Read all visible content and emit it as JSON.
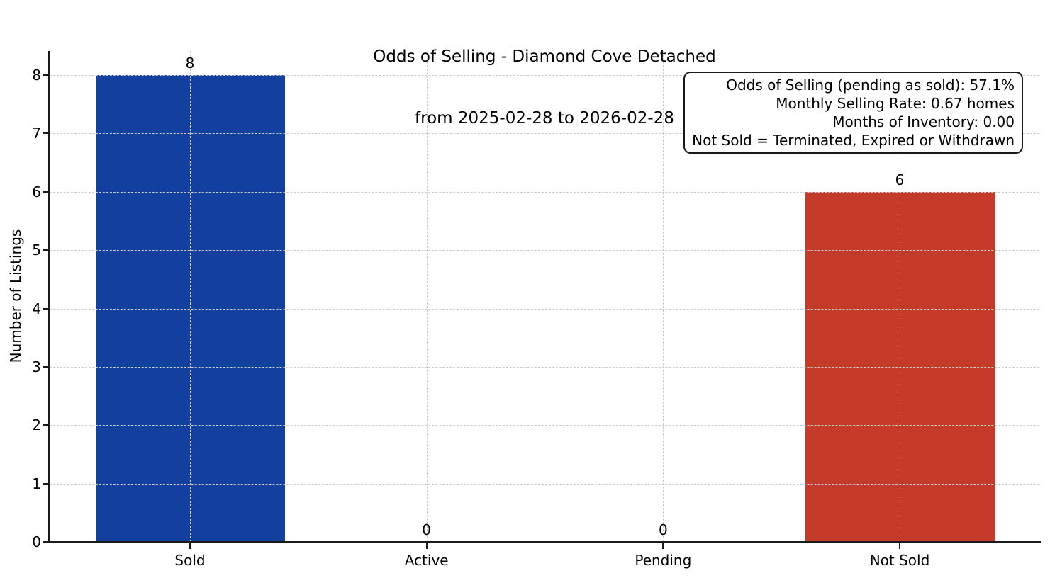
{
  "chart_data": {
    "type": "bar",
    "title": "Odds of Selling - Diamond Cove Detached",
    "subtitle": "from 2025-02-28 to 2026-02-28",
    "ylabel": "Number of Listings",
    "xlabel": "",
    "categories": [
      "Sold",
      "Active",
      "Pending",
      "Not Sold"
    ],
    "values": [
      8,
      0,
      0,
      6
    ],
    "value_labels": [
      "8",
      "0",
      "0",
      "6"
    ],
    "bar_colors": [
      "#133f9e",
      null,
      null,
      "#c43b2b"
    ],
    "yticks": [
      0,
      1,
      2,
      3,
      4,
      5,
      6,
      7,
      8
    ],
    "ylim": [
      0,
      8.4
    ],
    "grid": "dashed, both axes",
    "legend": "none",
    "annotation_lines": [
      "Odds of Selling (pending as sold): 57.1%",
      "Monthly Selling Rate: 0.67 homes",
      "Months of Inventory: 0.00",
      "Not Sold = Terminated, Expired or Withdrawn"
    ],
    "colors": {
      "sold_bar": "#133f9e",
      "not_sold_bar": "#c43b2b",
      "grid": "#cccccc",
      "axis": "#1a1a1a",
      "text": "#000000",
      "background": "#ffffff"
    }
  }
}
